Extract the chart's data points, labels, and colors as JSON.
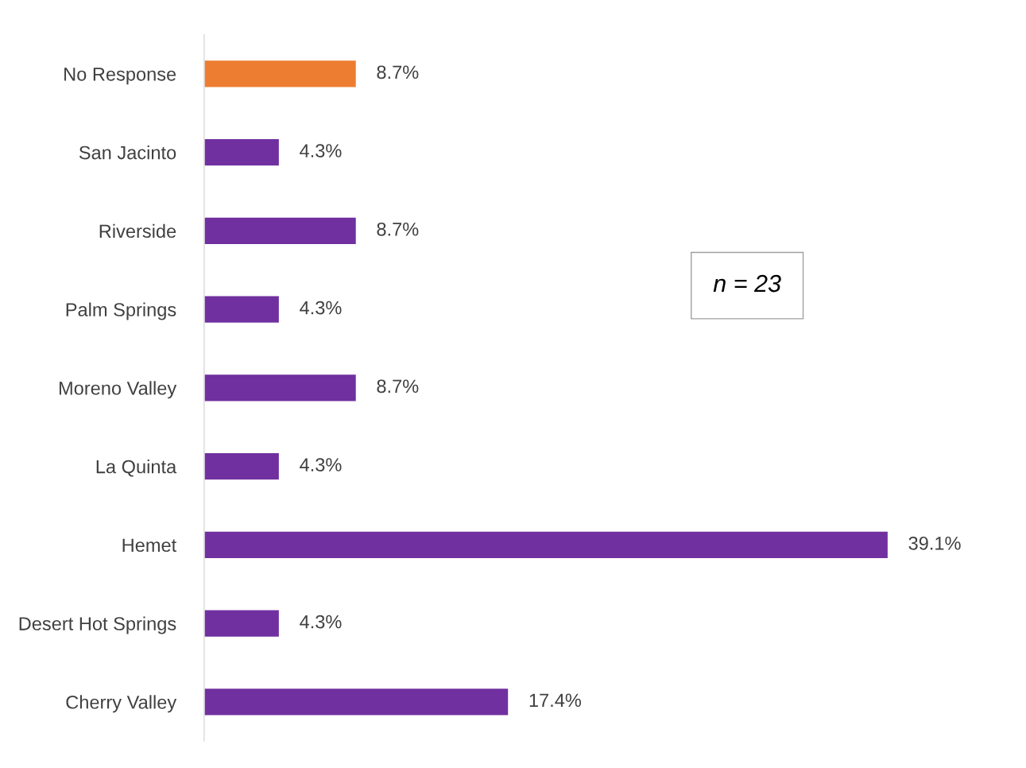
{
  "chart_data": {
    "type": "bar",
    "orientation": "horizontal",
    "categories": [
      "No Response",
      "San Jacinto",
      "Riverside",
      "Palm Springs",
      "Moreno Valley",
      "La Quinta",
      "Hemet",
      "Desert Hot Springs",
      "Cherry Valley"
    ],
    "values": [
      8.7,
      4.3,
      8.7,
      4.3,
      8.7,
      4.3,
      39.1,
      4.3,
      17.4
    ],
    "colors": [
      "#ed7d31",
      "#7030a0",
      "#7030a0",
      "#7030a0",
      "#7030a0",
      "#7030a0",
      "#7030a0",
      "#7030a0",
      "#7030a0"
    ],
    "value_labels": [
      "8.7%",
      "4.3%",
      "8.7%",
      "4.3%",
      "8.7%",
      "4.3%",
      "39.1%",
      "4.3%",
      "17.4%"
    ],
    "annotations": [
      "n = 23"
    ],
    "grid": false,
    "legend": false
  }
}
